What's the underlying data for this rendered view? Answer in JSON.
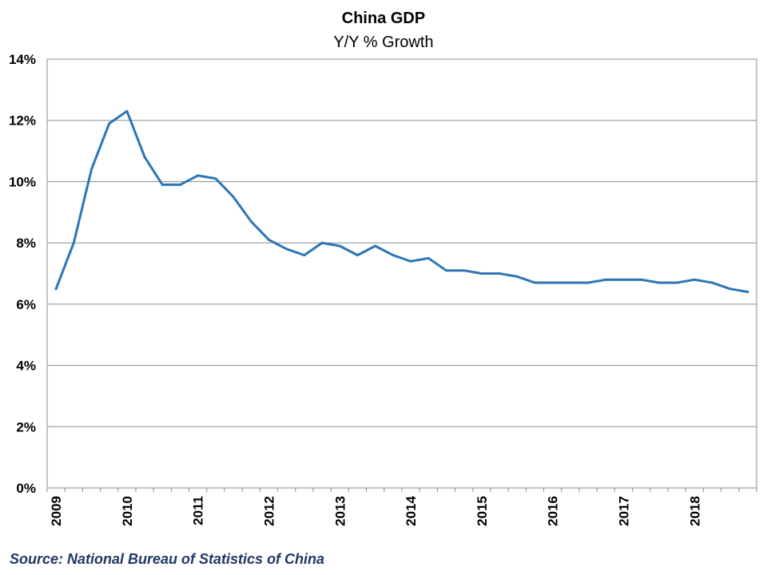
{
  "chart_data": {
    "type": "line",
    "title": "China GDP",
    "subtitle": "Y/Y % Growth",
    "xlabel": "",
    "ylabel": "",
    "ylim": [
      0,
      14
    ],
    "ytick_step": 2,
    "ytick_labels": [
      "0%",
      "2%",
      "4%",
      "6%",
      "8%",
      "10%",
      "12%",
      "14%"
    ],
    "xtick_labels": [
      "2009",
      "2010",
      "2011",
      "2012",
      "2013",
      "2014",
      "2015",
      "2016",
      "2017",
      "2018"
    ],
    "grid": "horizontal",
    "legend": "none",
    "line_color": "#2E75B6",
    "series": [
      {
        "values": [
          6.5,
          8.0,
          10.4,
          11.9,
          12.3,
          10.8,
          9.9,
          9.9,
          10.2,
          10.1,
          9.5,
          8.7,
          8.1,
          7.8,
          7.6,
          8.0,
          7.9,
          7.6,
          7.9,
          7.6,
          7.4,
          7.5,
          7.1,
          7.1,
          7.0,
          7.0,
          6.9,
          6.7,
          6.7,
          6.7,
          6.7,
          6.8,
          6.8,
          6.8,
          6.7,
          6.7,
          6.8,
          6.7,
          6.5,
          6.4
        ]
      }
    ]
  },
  "source": "Source: National Bureau of Statistics of China"
}
